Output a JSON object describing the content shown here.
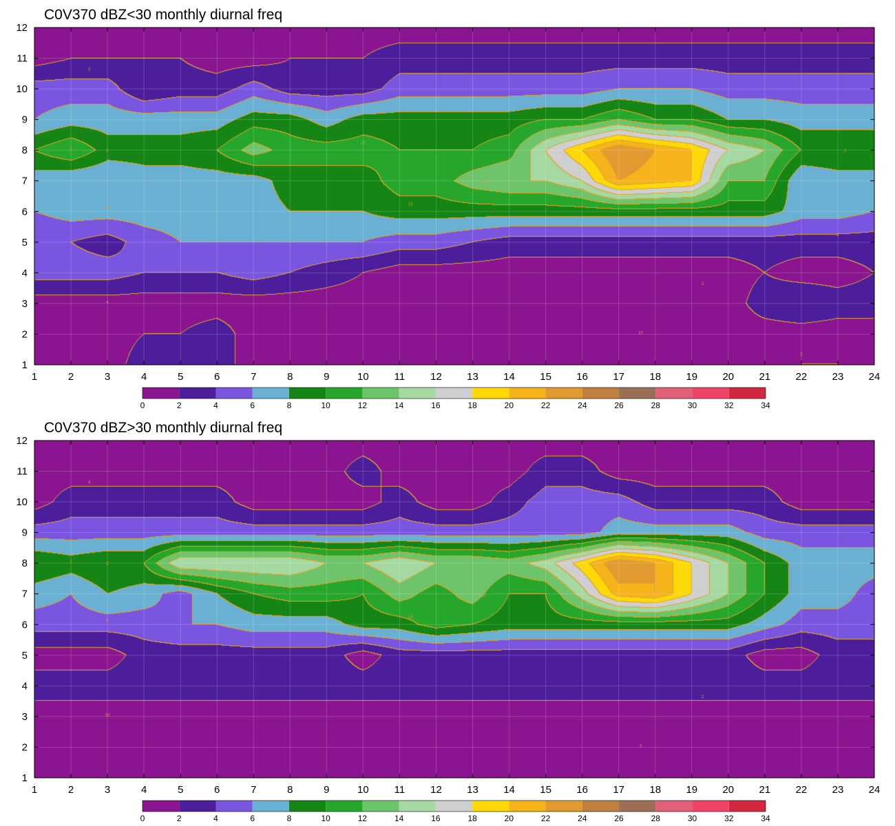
{
  "chart_data": [
    {
      "type": "contour",
      "title": "C0V370 dBZ<30 monthly diurnal freq",
      "xlabel": "",
      "ylabel": "",
      "x_ticks": [
        1,
        2,
        3,
        4,
        5,
        6,
        7,
        8,
        9,
        10,
        11,
        12,
        13,
        14,
        15,
        16,
        17,
        18,
        19,
        20,
        21,
        22,
        23,
        24
      ],
      "y_ticks": [
        1,
        2,
        3,
        4,
        5,
        6,
        7,
        8,
        9,
        10,
        11,
        12
      ],
      "xlim": [
        1,
        24
      ],
      "ylim": [
        1,
        12
      ],
      "levels": [
        0,
        2,
        4,
        6,
        8,
        10,
        12,
        14,
        16,
        18,
        20,
        22,
        24,
        26,
        28,
        30,
        32,
        34
      ],
      "contour_labels": [
        "2",
        "2",
        "2",
        "4",
        "10",
        "10",
        "10",
        "10",
        "10",
        "2",
        "2",
        "2",
        "2"
      ],
      "grid": true,
      "z_rows_y_1_to_12": [
        [
          2,
          1,
          1,
          3,
          2,
          3,
          1,
          1,
          1,
          1,
          1,
          1,
          1,
          1,
          1,
          1,
          1,
          1,
          1,
          1,
          1,
          2,
          2,
          1
        ],
        [
          1,
          1,
          1,
          2,
          2,
          3,
          1,
          1,
          1,
          1,
          2,
          1,
          1,
          1,
          1,
          1,
          2,
          2,
          1,
          1,
          1,
          1,
          1,
          1
        ],
        [
          1,
          1,
          1,
          1,
          1,
          1,
          1,
          1,
          1,
          1,
          1,
          1,
          1,
          1,
          1,
          1,
          1,
          1,
          1,
          1,
          3,
          4,
          3,
          3
        ],
        [
          5,
          5,
          5,
          4,
          4,
          4,
          5,
          4,
          3,
          2,
          1,
          1,
          1,
          1,
          1,
          1,
          1,
          1,
          1,
          1,
          2,
          1,
          1,
          2
        ],
        [
          4,
          4,
          3,
          5,
          6,
          6,
          6,
          6,
          6,
          6,
          5,
          5,
          4,
          3,
          3,
          3,
          3,
          3,
          3,
          3,
          3,
          3,
          3,
          3
        ],
        [
          6,
          7,
          7,
          7,
          7,
          7,
          7,
          8,
          8,
          8,
          9,
          9,
          9,
          9,
          9,
          9,
          9,
          9,
          9,
          9,
          9,
          7,
          7,
          6
        ],
        [
          7,
          6,
          6,
          7,
          7,
          7,
          7,
          9,
          9,
          9,
          11,
          11,
          13,
          14,
          14,
          16,
          22,
          21,
          20,
          12,
          12,
          6,
          7,
          7
        ],
        [
          10,
          12,
          9,
          9,
          9,
          10,
          13,
          11,
          11,
          11,
          10,
          10,
          10,
          11,
          16,
          20,
          24,
          22,
          20,
          16,
          14,
          10,
          10,
          10
        ],
        [
          6,
          7,
          7,
          7,
          7,
          7,
          9,
          9,
          7,
          9,
          9,
          9,
          9,
          9,
          10,
          10,
          12,
          10,
          10,
          8,
          8,
          7,
          7,
          7
        ],
        [
          5,
          5,
          5,
          2,
          3,
          3,
          5,
          3,
          3,
          3,
          5,
          5,
          5,
          5,
          5,
          5,
          6,
          6,
          6,
          5,
          5,
          5,
          5,
          5
        ],
        [
          1,
          2,
          2,
          2,
          2,
          1,
          1,
          2,
          2,
          2,
          3,
          3,
          3,
          3,
          3,
          3,
          3,
          3,
          3,
          3,
          3,
          3,
          3,
          3
        ],
        [
          1,
          1,
          1,
          1,
          1,
          1,
          1,
          1,
          1,
          1,
          1,
          1,
          1,
          1,
          1,
          1,
          1,
          1,
          1,
          1,
          1,
          1,
          1,
          1
        ]
      ],
      "colorbar": {
        "ticks": [
          "0",
          "2",
          "4",
          "6",
          "8",
          "10",
          "12",
          "14",
          "16",
          "18",
          "20",
          "22",
          "24",
          "26",
          "28",
          "30",
          "32",
          "34"
        ],
        "colors": [
          "#8b1590",
          "#4c1e9c",
          "#7a55e0",
          "#6ab0d2",
          "#158516",
          "#26a72b",
          "#6ec46a",
          "#a6d8a2",
          "#cfcfcf",
          "#fed907",
          "#f6b41a",
          "#e09a30",
          "#bf8040",
          "#9a6f55",
          "#e06078",
          "#ef4468",
          "#d12840"
        ]
      }
    },
    {
      "type": "contour",
      "title": "C0V370 dBZ>30 monthly diurnal freq",
      "xlabel": "",
      "ylabel": "",
      "x_ticks": [
        1,
        2,
        3,
        4,
        5,
        6,
        7,
        8,
        9,
        10,
        11,
        12,
        13,
        14,
        15,
        16,
        17,
        18,
        19,
        20,
        21,
        22,
        23,
        24
      ],
      "y_ticks": [
        1,
        2,
        3,
        4,
        5,
        6,
        7,
        8,
        9,
        10,
        11,
        12
      ],
      "xlim": [
        1,
        24
      ],
      "ylim": [
        1,
        12
      ],
      "levels": [
        0,
        2,
        4,
        6,
        8,
        10,
        12,
        14,
        16,
        18,
        20,
        22,
        24,
        26,
        28,
        30,
        32,
        34
      ],
      "contour_labels": [
        "2",
        "2",
        "4",
        "10",
        "10",
        "10",
        "10",
        "2",
        "2",
        "2"
      ],
      "grid": true,
      "z_rows_y_1_to_12": [
        [
          1,
          1,
          1,
          1,
          1,
          1,
          1,
          1,
          1,
          1,
          1,
          1,
          1,
          1,
          1,
          1,
          1,
          1,
          1,
          1,
          1,
          1,
          1,
          1
        ],
        [
          1,
          1,
          1,
          1,
          1,
          1,
          1,
          1,
          1,
          1,
          1,
          1,
          1,
          1,
          1,
          1,
          1,
          1,
          1,
          1,
          1,
          1,
          1,
          1
        ],
        [
          1,
          1,
          1,
          1,
          1,
          1,
          1,
          1,
          1,
          1,
          1,
          1,
          1,
          1,
          1,
          1,
          1,
          1,
          1,
          1,
          1,
          1,
          1,
          1
        ],
        [
          3,
          3,
          3,
          3,
          3,
          3,
          3,
          3,
          3,
          3,
          3,
          3,
          3,
          3,
          3,
          3,
          3,
          3,
          3,
          3,
          3,
          3,
          3,
          3
        ],
        [
          1,
          1,
          1,
          3,
          3,
          3,
          3,
          3,
          3,
          1,
          3,
          3,
          3,
          3,
          3,
          3,
          3,
          3,
          3,
          3,
          1,
          1,
          3,
          3
        ],
        [
          5,
          5,
          5,
          5,
          6,
          6,
          7,
          7,
          7,
          9,
          9,
          11,
          10,
          9,
          9,
          9,
          9,
          9,
          9,
          9,
          7,
          5,
          5,
          5
        ],
        [
          7,
          6,
          8,
          7,
          5,
          8,
          10,
          11,
          11,
          10,
          13,
          11,
          13,
          10,
          10,
          15,
          21,
          22,
          18,
          14,
          10,
          7,
          7,
          5
        ],
        [
          10,
          9,
          10,
          10,
          16,
          16,
          16,
          16,
          14,
          14,
          16,
          14,
          14,
          13,
          15,
          19,
          24,
          22,
          18,
          14,
          10,
          7,
          7,
          7
        ],
        [
          5,
          5,
          5,
          5,
          5,
          5,
          5,
          5,
          5,
          5,
          5,
          5,
          5,
          5,
          5,
          5,
          7,
          7,
          7,
          7,
          5,
          5,
          5,
          5
        ],
        [
          1,
          3,
          3,
          3,
          3,
          3,
          1,
          1,
          1,
          1,
          3,
          1,
          1,
          3,
          5,
          5,
          5,
          3,
          3,
          3,
          3,
          1,
          1,
          1
        ],
        [
          1,
          1,
          1,
          1,
          1,
          1,
          1,
          1,
          1,
          3,
          1,
          1,
          1,
          1,
          3,
          3,
          1,
          1,
          1,
          1,
          1,
          1,
          1,
          1
        ],
        [
          1,
          1,
          1,
          1,
          1,
          1,
          1,
          1,
          1,
          1,
          1,
          1,
          1,
          1,
          1,
          1,
          1,
          1,
          1,
          1,
          1,
          1,
          1,
          1
        ]
      ],
      "colorbar": {
        "ticks": [
          "0",
          "2",
          "4",
          "6",
          "8",
          "10",
          "12",
          "14",
          "16",
          "18",
          "20",
          "22",
          "24",
          "26",
          "28",
          "30",
          "32",
          "34"
        ],
        "colors": [
          "#8b1590",
          "#4c1e9c",
          "#7a55e0",
          "#6ab0d2",
          "#158516",
          "#26a72b",
          "#6ec46a",
          "#a6d8a2",
          "#cfcfcf",
          "#fed907",
          "#f6b41a",
          "#e09a30",
          "#bf8040",
          "#9a6f55",
          "#e06078",
          "#ef4468",
          "#d12840"
        ]
      }
    }
  ]
}
